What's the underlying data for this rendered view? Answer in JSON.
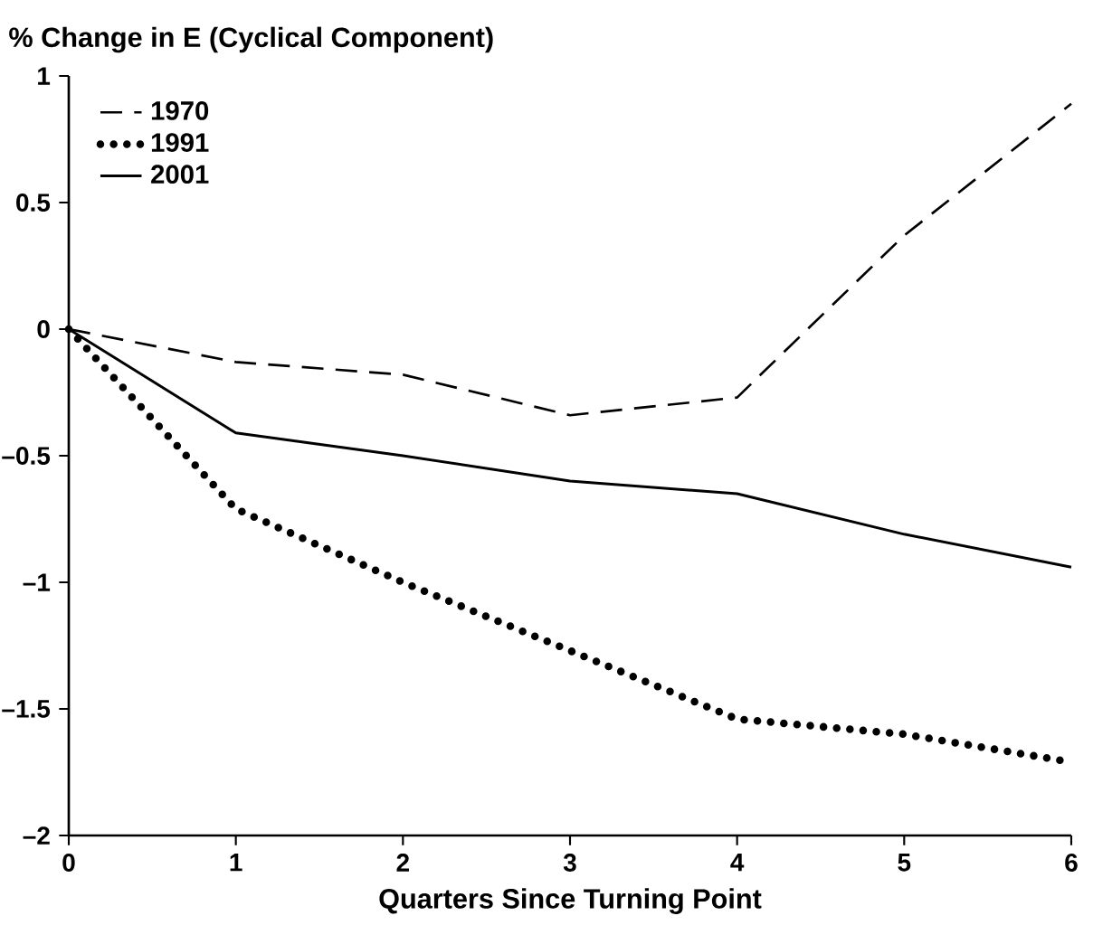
{
  "chart_data": {
    "type": "line",
    "xlabel": "Quarters Since Turning Point",
    "ylabel": "% Change in E (Cyclical Component)",
    "x": [
      0,
      1,
      2,
      3,
      4,
      5,
      6
    ],
    "series": [
      {
        "name": "1970",
        "color": "#000000",
        "line_style": "dashed",
        "values": [
          0,
          -0.13,
          -0.18,
          -0.34,
          -0.27,
          0.37,
          0.89
        ]
      },
      {
        "name": "1991",
        "color": "#000000",
        "line_style": "dotted",
        "values": [
          0,
          -0.71,
          -1.0,
          -1.27,
          -1.54,
          -1.6,
          -1.71
        ]
      },
      {
        "name": "2001",
        "color": "#000000",
        "line_style": "solid",
        "values": [
          0,
          -0.41,
          -0.5,
          -0.6,
          -0.65,
          -0.81,
          -0.94
        ]
      }
    ],
    "xlim": [
      0,
      6
    ],
    "xticks": [
      0,
      1,
      2,
      3,
      4,
      5,
      6
    ],
    "ylim": [
      -2,
      1
    ],
    "yticks": [
      {
        "value": -2,
        "label": "–2"
      },
      {
        "value": -1.5,
        "label": "–1.5"
      },
      {
        "value": -1,
        "label": "–1"
      },
      {
        "value": -0.5,
        "label": "–0.5"
      },
      0,
      0.5,
      1
    ],
    "legend": "top left",
    "grid": false,
    "marker": "none"
  }
}
